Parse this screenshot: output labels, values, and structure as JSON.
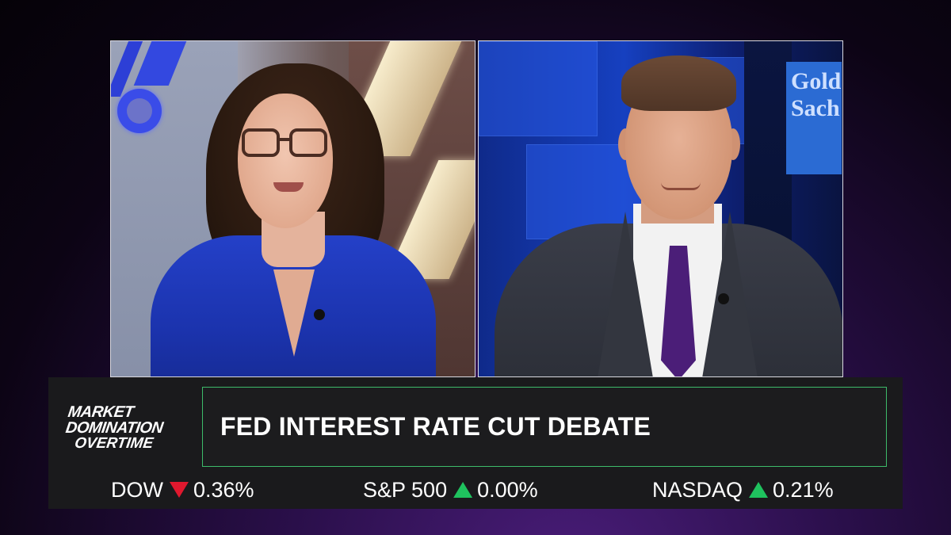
{
  "broadcast": {
    "show_logo": {
      "line1": "MARKET",
      "line2": "DOMINATION",
      "line3": "OVERTIME"
    },
    "headline": "FED INTEREST RATE CUT DEBATE",
    "background_sign_text": "Gold\nSach",
    "ticker": [
      {
        "symbol": "DOW",
        "direction": "down",
        "change": "0.36%"
      },
      {
        "symbol": "S&P 500",
        "direction": "up",
        "change": "0.00%"
      },
      {
        "symbol": "NASDAQ",
        "direction": "up",
        "change": "0.21%"
      }
    ],
    "colors": {
      "headline_border": "#3dbb6a",
      "up_arrow": "#1fc25e",
      "down_arrow": "#e0182e",
      "lower_third_bg": "#1a1a1c"
    },
    "icons": {
      "down": "triangle-down-icon",
      "up": "triangle-up-icon"
    }
  }
}
